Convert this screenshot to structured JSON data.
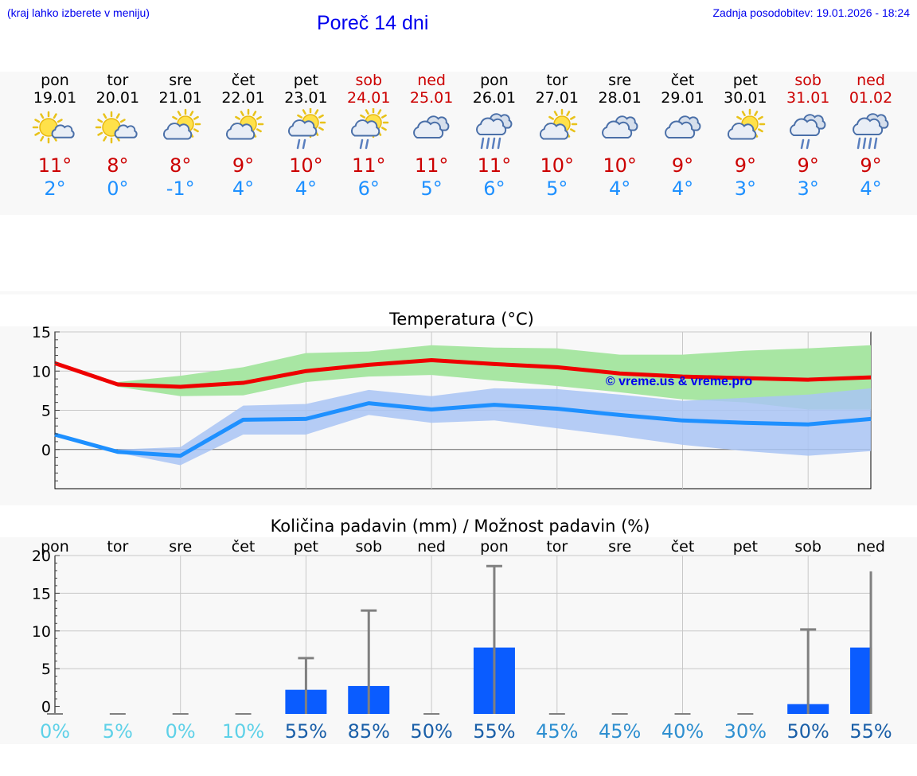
{
  "header": {
    "hint": "(kraj lahko izberete v meniju)",
    "title": "Poreč 14 dni",
    "updated": "Zadnja posodobitev: 19.01.2026 - 18:24"
  },
  "days": [
    {
      "name": "pon",
      "date": "19.01",
      "weekend": false,
      "icon": "sun-cloud-icon",
      "tmax": "11°",
      "tmin": "2°"
    },
    {
      "name": "tor",
      "date": "20.01",
      "weekend": false,
      "icon": "sun-cloud-icon",
      "tmax": "8°",
      "tmin": "0°"
    },
    {
      "name": "sre",
      "date": "21.01",
      "weekend": false,
      "icon": "cloud-sun-icon",
      "tmax": "8°",
      "tmin": "-1°"
    },
    {
      "name": "čet",
      "date": "22.01",
      "weekend": false,
      "icon": "cloud-sun-icon",
      "tmax": "9°",
      "tmin": "4°"
    },
    {
      "name": "pet",
      "date": "23.01",
      "weekend": false,
      "icon": "sun-cloud-rain-icon",
      "tmax": "10°",
      "tmin": "4°"
    },
    {
      "name": "sob",
      "date": "24.01",
      "weekend": true,
      "icon": "sun-cloud-rain-icon",
      "tmax": "11°",
      "tmin": "6°"
    },
    {
      "name": "ned",
      "date": "25.01",
      "weekend": true,
      "icon": "cloudy-icon",
      "tmax": "11°",
      "tmin": "5°"
    },
    {
      "name": "pon",
      "date": "26.01",
      "weekend": false,
      "icon": "heavy-rain-icon",
      "tmax": "11°",
      "tmin": "6°"
    },
    {
      "name": "tor",
      "date": "27.01",
      "weekend": false,
      "icon": "cloud-sun-icon",
      "tmax": "10°",
      "tmin": "5°"
    },
    {
      "name": "sre",
      "date": "28.01",
      "weekend": false,
      "icon": "cloudy-icon",
      "tmax": "10°",
      "tmin": "4°"
    },
    {
      "name": "čet",
      "date": "29.01",
      "weekend": false,
      "icon": "cloudy-icon",
      "tmax": "9°",
      "tmin": "4°"
    },
    {
      "name": "pet",
      "date": "30.01",
      "weekend": false,
      "icon": "cloud-sun-icon",
      "tmax": "9°",
      "tmin": "3°"
    },
    {
      "name": "sob",
      "date": "31.01",
      "weekend": true,
      "icon": "cloud-rain-icon",
      "tmax": "9°",
      "tmin": "3°"
    },
    {
      "name": "ned",
      "date": "01.02",
      "weekend": true,
      "icon": "heavy-rain-icon",
      "tmax": "9°",
      "tmin": "4°"
    }
  ],
  "colors": {
    "max": "#ee0000",
    "min": "#1e90ff",
    "max_band": "#a8e6a3",
    "min_band": "#a9c4f5",
    "overlap": "#7ec6a5",
    "bar": "#0a5cff",
    "whisker": "#808080",
    "watermark": "#0000ee"
  },
  "chart_data": [
    {
      "type": "line",
      "title": "Temperatura (°C)",
      "watermark": "© vreme.us & vreme.pro",
      "x": [
        0,
        1,
        2,
        3,
        4,
        5,
        6,
        7,
        8,
        9,
        10,
        11,
        12,
        13
      ],
      "ylim": [
        -5,
        15
      ],
      "yticks": [
        0,
        5,
        10,
        15
      ],
      "series": [
        {
          "name": "max",
          "values": [
            11,
            8.3,
            8,
            8.5,
            10,
            10.8,
            11.4,
            10.9,
            10.5,
            9.7,
            9.3,
            9.1,
            8.9,
            9.2
          ],
          "band_low": [
            null,
            8,
            6.8,
            6.9,
            8.6,
            9.3,
            9.5,
            8.8,
            8.1,
            7.3,
            6.4,
            6.0,
            5.1,
            5.1
          ],
          "band_high": [
            null,
            8.6,
            9.4,
            10.5,
            12.3,
            12.5,
            13.3,
            13.0,
            12.9,
            12.1,
            12.1,
            12.6,
            12.9,
            13.3
          ]
        },
        {
          "name": "min",
          "values": [
            1.9,
            -0.3,
            -0.8,
            3.8,
            3.9,
            5.9,
            5.1,
            5.7,
            5.2,
            4.4,
            3.7,
            3.4,
            3.2,
            3.9
          ],
          "band_low": [
            null,
            -0.4,
            -2.0,
            1.9,
            1.9,
            4.4,
            3.4,
            3.7,
            2.7,
            1.7,
            0.6,
            -0.2,
            -0.8,
            -0.2
          ],
          "band_high": [
            null,
            0.0,
            0.3,
            5.6,
            5.8,
            7.6,
            6.8,
            7.8,
            7.7,
            7.0,
            6.2,
            6.6,
            7.0,
            7.8
          ]
        }
      ]
    },
    {
      "type": "bar",
      "title": "Količina padavin (mm) / Možnost padavin (%)",
      "categories": [
        "pon",
        "tor",
        "sre",
        "čet",
        "pet",
        "sob",
        "ned",
        "pon",
        "tor",
        "sre",
        "čet",
        "pet",
        "sob",
        "ned"
      ],
      "ylim": [
        -1,
        20
      ],
      "yticks": [
        0,
        5,
        10,
        15,
        20
      ],
      "values": [
        0,
        0,
        0,
        0,
        2.2,
        2.7,
        0,
        7.8,
        0,
        0,
        0,
        0,
        0.3,
        7.8
      ],
      "max": [
        0,
        0,
        0,
        0,
        6.4,
        12.7,
        0,
        18.6,
        0,
        0,
        0,
        0,
        10.2,
        17.9
      ],
      "chance": [
        "0%",
        "5%",
        "0%",
        "10%",
        "55%",
        "85%",
        "50%",
        "55%",
        "45%",
        "45%",
        "40%",
        "30%",
        "50%",
        "55%"
      ],
      "chance_colors": [
        "#5ed1e8",
        "#5ed1e8",
        "#5ed1e8",
        "#5ed1e8",
        "#1a5fa8",
        "#1a5fa8",
        "#1a5fa8",
        "#1a5fa8",
        "#2e8fd0",
        "#2e8fd0",
        "#2e8fd0",
        "#2e8fd0",
        "#1a5fa8",
        "#1a5fa8"
      ]
    }
  ]
}
